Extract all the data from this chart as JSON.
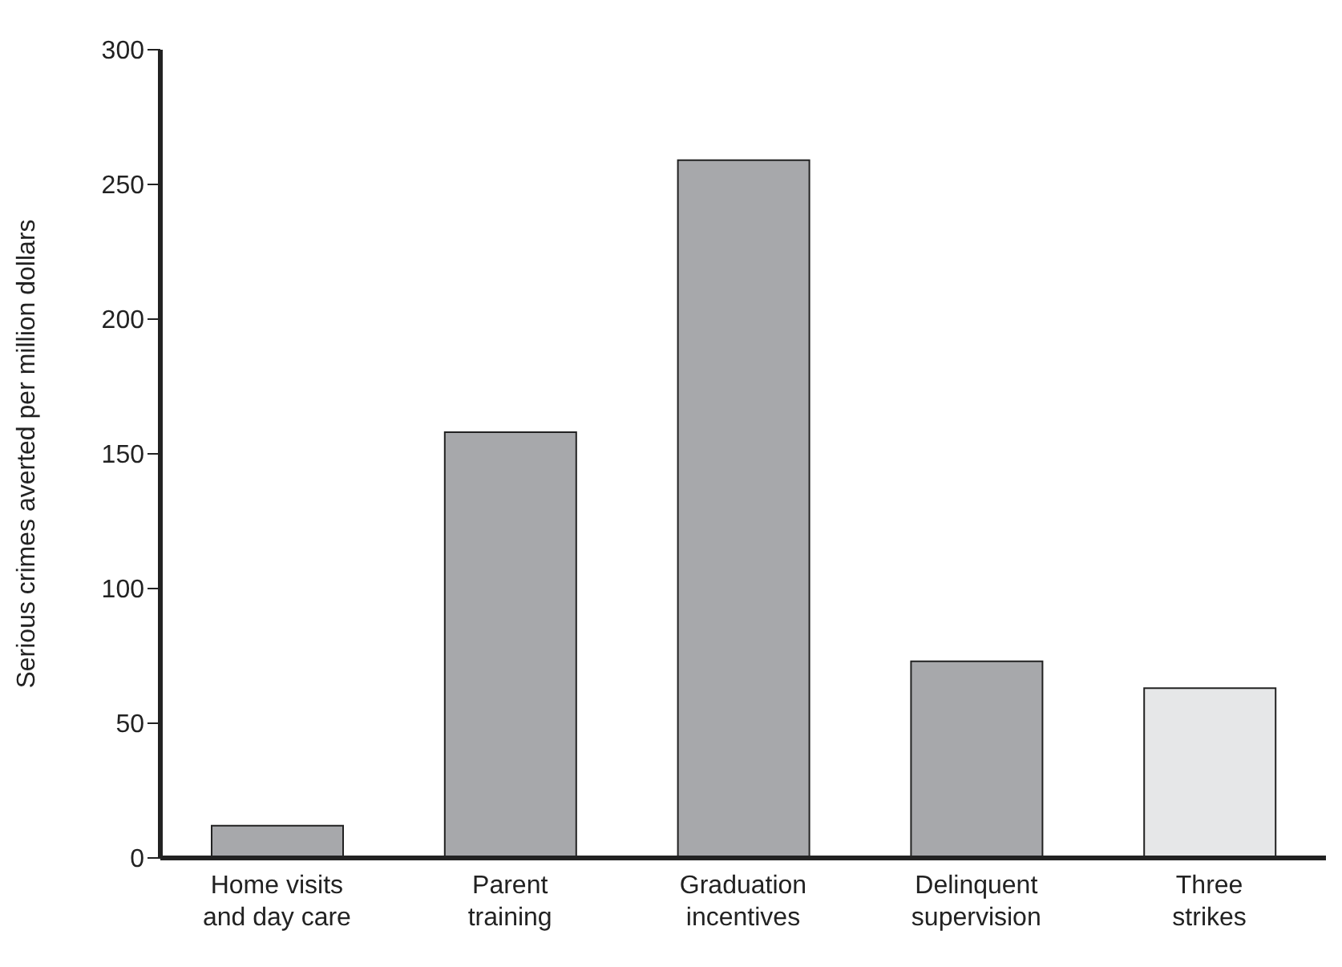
{
  "chart_data": {
    "type": "bar",
    "ylabel": "Serious crimes averted per million dollars",
    "categories": [
      "Home visits and day care",
      "Parent training",
      "Graduation incentives",
      "Delinquent supervision",
      "Three strikes"
    ],
    "values": [
      12,
      158,
      259,
      73,
      63
    ],
    "colors": [
      "#a7a8ab",
      "#a7a8ab",
      "#a7a8ab",
      "#a7a8ab",
      "#e6e7e8"
    ],
    "ylim": [
      0,
      300
    ],
    "yticks": [
      0,
      50,
      100,
      150,
      200,
      250,
      300
    ],
    "grid": false,
    "legend": false
  }
}
